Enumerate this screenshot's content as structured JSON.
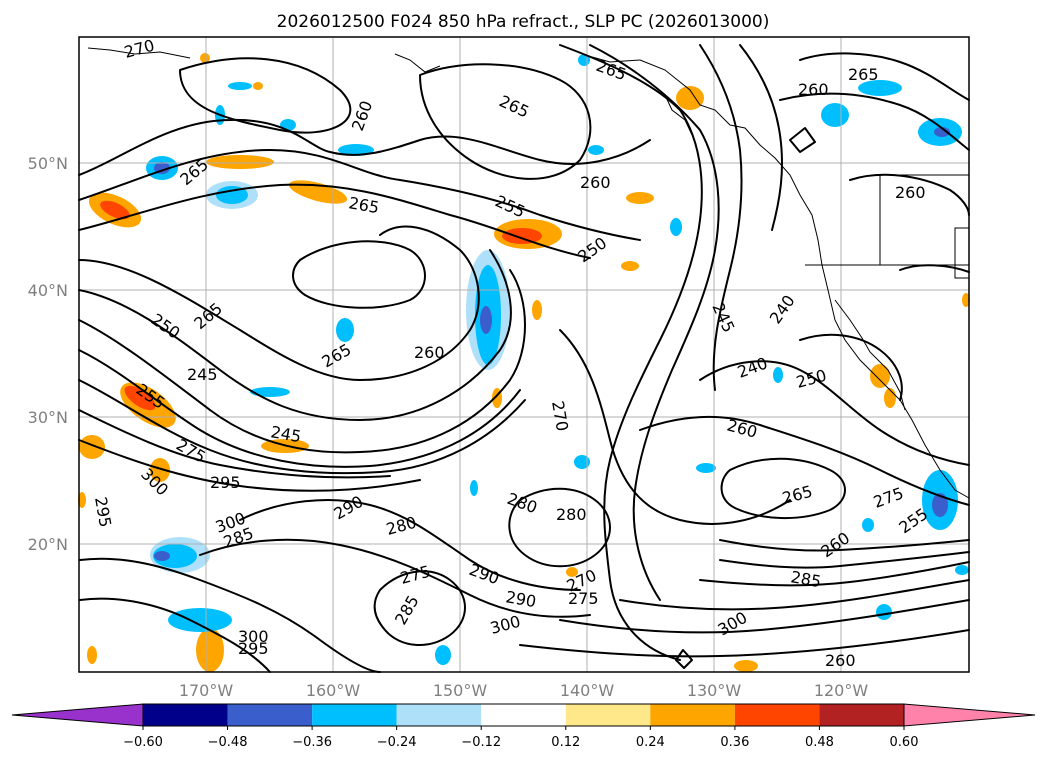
{
  "title": "2026012500 F024 850 hPa refract., SLP PC (2026013000)",
  "map": {
    "lat_labels": [
      "50°N",
      "40°N",
      "30°N",
      "20°N"
    ],
    "lon_labels": [
      "170°W",
      "160°W",
      "150°W",
      "140°W",
      "130°W",
      "120°W"
    ],
    "contour_labels": [
      "270",
      "265",
      "260",
      "265",
      "265",
      "255",
      "260",
      "250",
      "265",
      "265",
      "250",
      "245",
      "260",
      "265",
      "245",
      "240",
      "240",
      "250",
      "260",
      "270",
      "245",
      "255",
      "275",
      "300",
      "295",
      "295",
      "290",
      "280",
      "280",
      "280",
      "300",
      "285",
      "275",
      "270",
      "275",
      "290",
      "290",
      "300",
      "300",
      "295",
      "285",
      "300",
      "265",
      "275",
      "260",
      "285",
      "255",
      "260",
      "265",
      "260",
      "260"
    ]
  },
  "colorbar": {
    "ticks": [
      "−0.60",
      "−0.48",
      "−0.36",
      "−0.24",
      "−0.12",
      "0.12",
      "0.24",
      "0.36",
      "0.48",
      "0.60"
    ],
    "colors": [
      "#9932cc",
      "#00008b",
      "#3a5fcd",
      "#00bfff",
      "#afe0fa",
      "#ffffff",
      "#ffe88a",
      "#ffa500",
      "#ff4500",
      "#b22222",
      "#ff82ab"
    ]
  },
  "shading_colors": {
    "blue_light": "#afe0fa",
    "blue": "#00bfff",
    "blue_dark": "#3a5fcd",
    "purple": "#9932cc",
    "orange_light": "#ffe88a",
    "orange": "#ffa500",
    "red": "#ff4500"
  }
}
